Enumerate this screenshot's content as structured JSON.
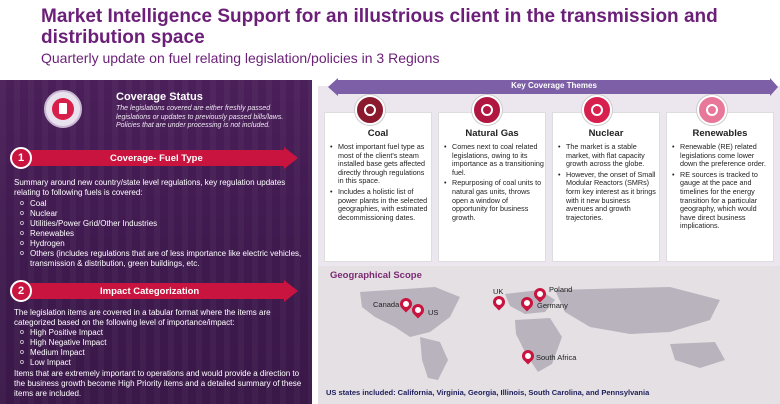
{
  "header": {
    "title": "Market Intelligence Support for an illustrious client in the transmission and distribution space",
    "subtitle": "Quarterly update on fuel relating legislation/policies in 3 Regions"
  },
  "coverage_status": {
    "icon": "document-icon",
    "title": "Coverage Status",
    "text": "The legislations covered are either freshly passed legislations or updates to previously passed bills/laws. Policies that are under processing is not included."
  },
  "section1": {
    "number": "1",
    "label": "Coverage- Fuel Type",
    "intro": "Summary around new country/state level regulations, key regulation updates relating to following fuels is covered:",
    "items": [
      "Coal",
      "Nuclear",
      "Utilities/Power Grid/Other Industries",
      "Renewables",
      "Hydrogen",
      "Others (includes regulations that are of less importance like electric vehicles, transmission & distribution, green buildings, etc."
    ]
  },
  "section2": {
    "number": "2",
    "label": "Impact Categorization",
    "intro": "The legislation items are covered in a tabular format where the items are categorized based on the following level of importance/impact:",
    "items": [
      "High Positive Impact",
      "High Negative Impact",
      "Medium Impact",
      "Low Impact"
    ],
    "outro": "Items that are extremely important to operations and would provide a direction to the business growth become High Priority items and a detailed summary of these items are included."
  },
  "themes": {
    "label": "Key Coverage Themes",
    "cards": [
      {
        "title": "Coal",
        "icon": "coal-cart-icon",
        "color": "#8b1a2e",
        "bullets": [
          "Most important fuel type as most of the client's steam installed base gets affected directly through regulations in this space.",
          "Includes a holistic list of power plants in the selected geographies, with estimated decommissioning dates."
        ]
      },
      {
        "title": "Natural Gas",
        "icon": "gas-plant-icon",
        "color": "#b01640",
        "bullets": [
          "Comes next to coal related legislations, owing to its importance as a transitioning fuel.",
          "Repurposing of coal units to natural gas units, throws open a window of opportunity for business growth."
        ]
      },
      {
        "title": "Nuclear",
        "icon": "atom-icon",
        "color": "#d8204f",
        "bullets": [
          "The market is a stable market, with flat capacity growth across the globe.",
          "However, the onset of Small Modular Reactors (SMRs) form key interest as it brings with it new business avenues and growth trajectories."
        ]
      },
      {
        "title": "Renewables",
        "icon": "renewable-icon",
        "color": "#e8789a",
        "bullets": [
          "Renewable (RE) related legislations come lower down the preference order.",
          "RE sources is tracked to gauge at the pace and timelines for the energy transition for a particular geography, which would have direct business implications."
        ]
      }
    ]
  },
  "geo": {
    "title": "Geographical Scope",
    "locations": [
      "Canada",
      "US",
      "UK",
      "Poland",
      "Germany",
      "South Africa"
    ],
    "us_states": "US states included: California, Virginia, Georgia, Illinois, South Carolina, and Pennsylvania"
  }
}
